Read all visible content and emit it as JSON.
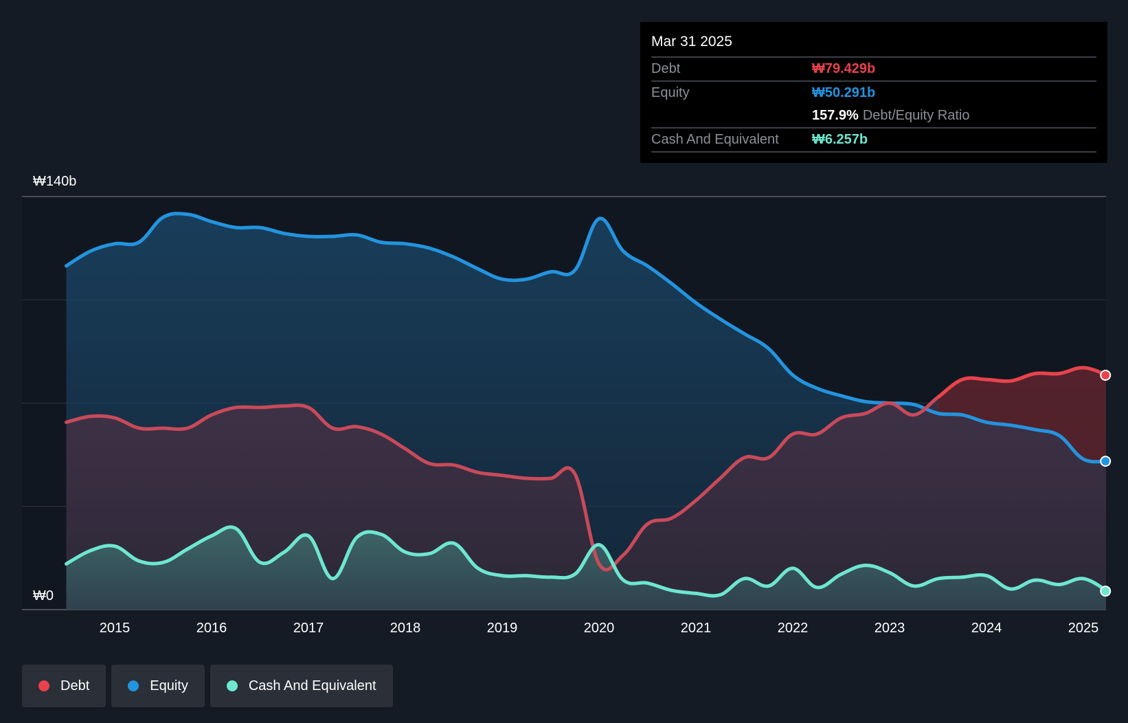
{
  "tooltip": {
    "date": "Mar 31 2025",
    "debt_label": "Debt",
    "debt_value": "₩79.429b",
    "equity_label": "Equity",
    "equity_value": "₩50.291b",
    "ratio_value": "157.9%",
    "ratio_label": "Debt/Equity Ratio",
    "cash_label": "Cash And Equivalent",
    "cash_value": "₩6.257b"
  },
  "legend": {
    "debt": "Debt",
    "equity": "Equity",
    "cash": "Cash And Equivalent"
  },
  "colors": {
    "debt": "#e8434c",
    "equity": "#2394df",
    "cash": "#6ee6d0",
    "background": "#151b24"
  },
  "chart_data": {
    "type": "area",
    "title": "",
    "xlabel": "",
    "ylabel": "",
    "ylim": [
      0,
      140
    ],
    "xlim": [
      2014.5,
      2025.25
    ],
    "y_tick_labels": [
      {
        "value": 140,
        "label": "₩140b"
      },
      {
        "value": 0,
        "label": "₩0"
      }
    ],
    "x_ticks": [
      2015,
      2016,
      2017,
      2018,
      2019,
      2020,
      2021,
      2022,
      2023,
      2024,
      2025
    ],
    "x_tick_labels": [
      "2015",
      "2016",
      "2017",
      "2018",
      "2019",
      "2020",
      "2021",
      "2022",
      "2023",
      "2024",
      "2025"
    ],
    "series": [
      {
        "name": "Equity",
        "key": "equity",
        "x": [
          2014.5,
          2014.75,
          2015.0,
          2015.25,
          2015.5,
          2015.75,
          2016.0,
          2016.25,
          2016.5,
          2016.75,
          2017.0,
          2017.25,
          2017.5,
          2017.75,
          2018.0,
          2018.25,
          2018.5,
          2018.75,
          2019.0,
          2019.25,
          2019.5,
          2019.75,
          2020.0,
          2020.25,
          2020.5,
          2020.75,
          2021.0,
          2021.25,
          2021.5,
          2021.75,
          2022.0,
          2022.25,
          2022.5,
          2022.75,
          2023.0,
          2023.25,
          2023.5,
          2023.75,
          2024.0,
          2024.25,
          2024.5,
          2024.75,
          2025.0,
          2025.25
        ],
        "values": [
          116.5,
          121.5,
          124.0,
          124.5,
          133.0,
          134.0,
          131.5,
          129.5,
          129.5,
          127.5,
          126.5,
          126.5,
          127.0,
          124.5,
          124.0,
          122.5,
          119.5,
          115.5,
          112.0,
          112.0,
          114.5,
          115.0,
          132.5,
          121.5,
          116.5,
          110.5,
          104.0,
          98.5,
          93.5,
          88.5,
          79.5,
          75.0,
          72.5,
          70.5,
          70.0,
          69.5,
          66.5,
          66.0,
          63.5,
          62.5,
          61.0,
          59.0,
          51.0,
          50.291
        ]
      },
      {
        "name": "Debt",
        "key": "debt",
        "x": [
          2014.5,
          2014.75,
          2015.0,
          2015.25,
          2015.5,
          2015.75,
          2016.0,
          2016.25,
          2016.5,
          2016.75,
          2017.0,
          2017.25,
          2017.5,
          2017.75,
          2018.0,
          2018.25,
          2018.5,
          2018.75,
          2019.0,
          2019.25,
          2019.5,
          2019.75,
          2020.0,
          2020.25,
          2020.5,
          2020.75,
          2021.0,
          2021.25,
          2021.5,
          2021.75,
          2022.0,
          2022.25,
          2022.5,
          2022.75,
          2023.0,
          2023.25,
          2023.5,
          2023.75,
          2024.0,
          2024.25,
          2024.5,
          2024.75,
          2025.0,
          2025.25
        ],
        "values": [
          63.5,
          65.5,
          65.0,
          61.5,
          61.5,
          61.5,
          66.0,
          68.5,
          68.5,
          69.0,
          68.5,
          61.5,
          62.0,
          59.5,
          54.5,
          49.5,
          49.0,
          46.5,
          45.5,
          44.5,
          44.5,
          46.0,
          15.5,
          18.5,
          29.0,
          31.0,
          37.0,
          44.5,
          51.5,
          51.5,
          59.5,
          59.5,
          65.0,
          66.5,
          70.0,
          66.0,
          72.0,
          78.0,
          78.0,
          77.5,
          80.0,
          80.0,
          82.0,
          79.429
        ]
      },
      {
        "name": "Cash And Equivalent",
        "key": "cash",
        "x": [
          2014.5,
          2014.75,
          2015.0,
          2015.25,
          2015.5,
          2015.75,
          2016.0,
          2016.25,
          2016.5,
          2016.75,
          2017.0,
          2017.25,
          2017.5,
          2017.75,
          2018.0,
          2018.25,
          2018.5,
          2018.75,
          2019.0,
          2019.25,
          2019.5,
          2019.75,
          2020.0,
          2020.25,
          2020.5,
          2020.75,
          2021.0,
          2021.25,
          2021.5,
          2021.75,
          2022.0,
          2022.25,
          2022.5,
          2022.75,
          2023.0,
          2023.25,
          2023.5,
          2023.75,
          2024.0,
          2024.25,
          2024.5,
          2024.75,
          2025.0,
          2025.25
        ],
        "values": [
          15.5,
          20.0,
          21.5,
          16.5,
          16.0,
          20.5,
          25.0,
          27.5,
          16.0,
          19.5,
          25.0,
          10.5,
          24.5,
          25.5,
          19.5,
          19.0,
          22.5,
          14.0,
          11.5,
          11.5,
          11.0,
          12.0,
          22.0,
          10.0,
          9.0,
          6.5,
          5.5,
          5.0,
          10.5,
          8.0,
          14.0,
          7.5,
          12.0,
          15.0,
          12.5,
          8.0,
          10.5,
          11.0,
          11.5,
          7.0,
          10.0,
          8.5,
          10.5,
          6.257
        ]
      }
    ],
    "legend_position": "bottom-left",
    "tooltip_position": "top-right",
    "grid": true
  }
}
